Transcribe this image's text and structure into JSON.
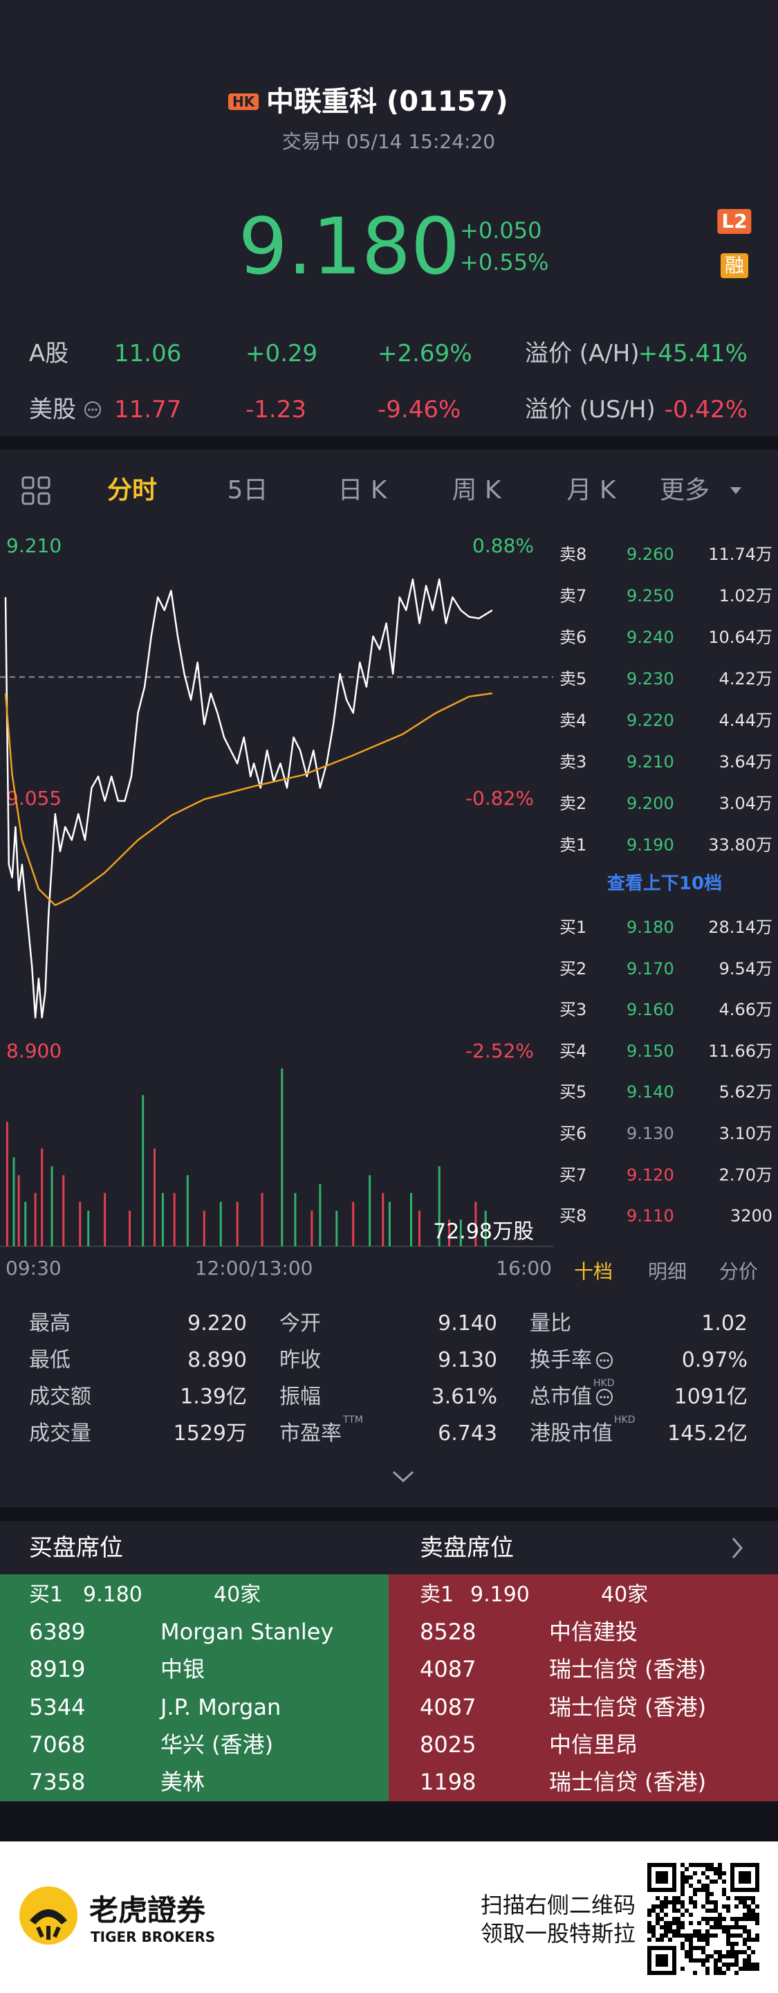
{
  "header": {
    "badge": "HK",
    "title": "中联重科 (01157)",
    "status": "交易中 05/14 15:24:20",
    "price": "9.180",
    "change": "+0.050",
    "change_pct": "+0.55%",
    "badge_l2": "L2",
    "badge_margin": "融"
  },
  "compare": [
    {
      "label": "A股",
      "price": "11.06",
      "change": "+0.29",
      "pct": "+2.69%",
      "premium_label": "溢价 (A/H)",
      "premium": "+45.41%",
      "color": "#3ec47a",
      "info": false
    },
    {
      "label": "美股",
      "price": "11.77",
      "change": "-1.23",
      "pct": "-9.46%",
      "premium_label": "溢价 (US/H)",
      "premium": "-0.42%",
      "color": "#f0475a",
      "info": true
    }
  ],
  "tabs": {
    "items": [
      "分时",
      "5日",
      "日 K",
      "周 K",
      "月 K",
      "更多"
    ],
    "active": 0
  },
  "chart_data": {
    "type": "line",
    "prev_close": 9.13,
    "xlim": [
      0,
      330
    ],
    "xticks": [
      {
        "value": 0,
        "label": "09:30"
      },
      {
        "value": 150,
        "label": "12:00/13:00"
      },
      {
        "value": 330,
        "label": "16:00"
      }
    ],
    "ylim": [
      8.9,
      9.21
    ],
    "yticks": [
      {
        "value": 9.21,
        "label": "9.210"
      },
      {
        "value": 9.055,
        "label": "9.055"
      },
      {
        "value": 8.9,
        "label": "8.900"
      }
    ],
    "y2lim": [
      -2.52,
      0.88
    ],
    "y2ticks": [
      {
        "value": 0.88,
        "label": "0.88%"
      },
      {
        "value": -0.82,
        "label": "-0.82%"
      },
      {
        "value": -2.52,
        "label": "-2.52%"
      }
    ],
    "series": [
      {
        "color": "#ffffff",
        "x": [
          0,
          2,
          4,
          6,
          8,
          10,
          13,
          16,
          18,
          20,
          22,
          24,
          26,
          28,
          30,
          33,
          36,
          40,
          44,
          48,
          52,
          56,
          60,
          64,
          68,
          72,
          76,
          80,
          84,
          88,
          92,
          96,
          100,
          104,
          108,
          112,
          116,
          120,
          124,
          128,
          132,
          136,
          140,
          144,
          148,
          150,
          154,
          158,
          162,
          166,
          170,
          174,
          178,
          182,
          186,
          190,
          194,
          198,
          202,
          206,
          210,
          214,
          218,
          222,
          226,
          230,
          234,
          238,
          242,
          246,
          250,
          254,
          258,
          262,
          266,
          270,
          275,
          280,
          286,
          294
        ],
        "values": [
          9.179,
          9.015,
          9.007,
          9.038,
          8.999,
          9.015,
          8.984,
          8.952,
          8.921,
          8.945,
          8.921,
          8.937,
          8.984,
          9.015,
          9.046,
          9.023,
          9.038,
          9.03,
          9.046,
          9.03,
          9.062,
          9.069,
          9.054,
          9.069,
          9.054,
          9.054,
          9.069,
          9.108,
          9.124,
          9.155,
          9.179,
          9.171,
          9.183,
          9.155,
          9.132,
          9.116,
          9.139,
          9.101,
          9.12,
          9.108,
          9.093,
          9.085,
          9.077,
          9.093,
          9.069,
          9.077,
          9.062,
          9.085,
          9.066,
          9.077,
          9.062,
          9.093,
          9.085,
          9.069,
          9.085,
          9.062,
          9.077,
          9.101,
          9.132,
          9.116,
          9.108,
          9.139,
          9.124,
          9.155,
          9.147,
          9.163,
          9.132,
          9.179,
          9.171,
          9.19,
          9.163,
          9.186,
          9.171,
          9.19,
          9.163,
          9.179,
          9.171,
          9.167,
          9.166,
          9.171
        ]
      },
      {
        "color": "#f0a020",
        "x": [
          0,
          4,
          10,
          20,
          30,
          40,
          60,
          80,
          100,
          120,
          150,
          180,
          210,
          240,
          260,
          280,
          294
        ],
        "values": [
          9.12,
          9.07,
          9.03,
          9.0,
          8.99,
          8.995,
          9.01,
          9.03,
          9.045,
          9.055,
          9.063,
          9.07,
          9.082,
          9.095,
          9.108,
          9.118,
          9.12
        ]
      }
    ],
    "volume": {
      "label": "72.98万股",
      "ylim": [
        0,
        100
      ],
      "series": [
        {
          "color": "#2fb36b",
          "x": [
            5,
            12,
            28,
            50,
            83,
            95,
            110,
            130,
            167,
            175,
            190,
            200,
            220,
            232,
            245,
            262,
            275,
            290
          ],
          "values": [
            50,
            25,
            45,
            20,
            85,
            30,
            40,
            25,
            100,
            30,
            35,
            20,
            40,
            25,
            30,
            45,
            15,
            20
          ]
        },
        {
          "color": "#e0404f",
          "x": [
            1,
            8,
            18,
            22,
            35,
            45,
            60,
            75,
            90,
            102,
            120,
            140,
            155,
            185,
            210,
            228,
            250,
            268,
            284
          ],
          "values": [
            70,
            40,
            30,
            55,
            40,
            25,
            30,
            20,
            55,
            30,
            20,
            25,
            30,
            20,
            25,
            30,
            20,
            15,
            25
          ]
        }
      ]
    }
  },
  "order_book": {
    "asks": [
      {
        "label": "卖8",
        "price": "9.260",
        "volume": "11.74万",
        "color": "#3ec47a"
      },
      {
        "label": "卖7",
        "price": "9.250",
        "volume": "1.02万",
        "color": "#3ec47a"
      },
      {
        "label": "卖6",
        "price": "9.240",
        "volume": "10.64万",
        "color": "#3ec47a"
      },
      {
        "label": "卖5",
        "price": "9.230",
        "volume": "4.22万",
        "color": "#3ec47a"
      },
      {
        "label": "卖4",
        "price": "9.220",
        "volume": "4.44万",
        "color": "#3ec47a"
      },
      {
        "label": "卖3",
        "price": "9.210",
        "volume": "3.64万",
        "color": "#3ec47a"
      },
      {
        "label": "卖2",
        "price": "9.200",
        "volume": "3.04万",
        "color": "#3ec47a"
      },
      {
        "label": "卖1",
        "price": "9.190",
        "volume": "33.80万",
        "color": "#3ec47a"
      }
    ],
    "link": "查看上下10档",
    "bids": [
      {
        "label": "买1",
        "price": "9.180",
        "volume": "28.14万",
        "color": "#3ec47a"
      },
      {
        "label": "买2",
        "price": "9.170",
        "volume": "9.54万",
        "color": "#3ec47a"
      },
      {
        "label": "买3",
        "price": "9.160",
        "volume": "4.66万",
        "color": "#3ec47a"
      },
      {
        "label": "买4",
        "price": "9.150",
        "volume": "11.66万",
        "color": "#3ec47a"
      },
      {
        "label": "买5",
        "price": "9.140",
        "volume": "5.62万",
        "color": "#3ec47a"
      },
      {
        "label": "买6",
        "price": "9.130",
        "volume": "3.10万",
        "color": "#9a9ca8"
      },
      {
        "label": "买7",
        "price": "9.120",
        "volume": "2.70万",
        "color": "#f0475a"
      },
      {
        "label": "买8",
        "price": "9.110",
        "volume": "3200",
        "color": "#f0475a"
      }
    ],
    "tabs": [
      "十档",
      "明细",
      "分价"
    ],
    "active_tab": 0
  },
  "stats": [
    [
      {
        "label": "最高",
        "value": "9.220"
      },
      {
        "label": "今开",
        "value": "9.140"
      },
      {
        "label": "量比",
        "value": "1.02"
      }
    ],
    [
      {
        "label": "最低",
        "value": "8.890"
      },
      {
        "label": "昨收",
        "value": "9.130"
      },
      {
        "label": "换手率",
        "value": "0.97%",
        "info": true
      }
    ],
    [
      {
        "label": "成交额",
        "value": "1.39亿"
      },
      {
        "label": "振幅",
        "value": "3.61%"
      },
      {
        "label": "总市值",
        "value": "1091亿",
        "sup": "HKD",
        "info": true
      }
    ],
    [
      {
        "label": "成交量",
        "value": "1529万"
      },
      {
        "label": "市盈率",
        "value": "6.743",
        "sup": "TTM"
      },
      {
        "label": "港股市值",
        "value": "145.2亿",
        "sup": "HKD"
      }
    ]
  ],
  "brokers": {
    "buy_title": "买盘席位",
    "sell_title": "卖盘席位",
    "buy_head": {
      "label": "买1",
      "price": "9.180",
      "count": "40家"
    },
    "sell_head": {
      "label": "卖1",
      "price": "9.190",
      "count": "40家"
    },
    "buy": [
      {
        "code": "6389",
        "name": "Morgan Stanley"
      },
      {
        "code": "8919",
        "name": "中银"
      },
      {
        "code": "5344",
        "name": "J.P. Morgan"
      },
      {
        "code": "7068",
        "name": "华兴 (香港)"
      },
      {
        "code": "7358",
        "name": "美林"
      }
    ],
    "sell": [
      {
        "code": "8528",
        "name": "中信建投"
      },
      {
        "code": "4087",
        "name": "瑞士信贷 (香港)"
      },
      {
        "code": "4087",
        "name": "瑞士信贷 (香港)"
      },
      {
        "code": "8025",
        "name": "中信里昂"
      },
      {
        "code": "1198",
        "name": "瑞士信贷 (香港)"
      }
    ]
  },
  "footer": {
    "brand": "老虎證券",
    "brand_en": "TIGER BROKERS",
    "line1": "扫描右侧二维码",
    "line2": "领取一股特斯拉"
  }
}
